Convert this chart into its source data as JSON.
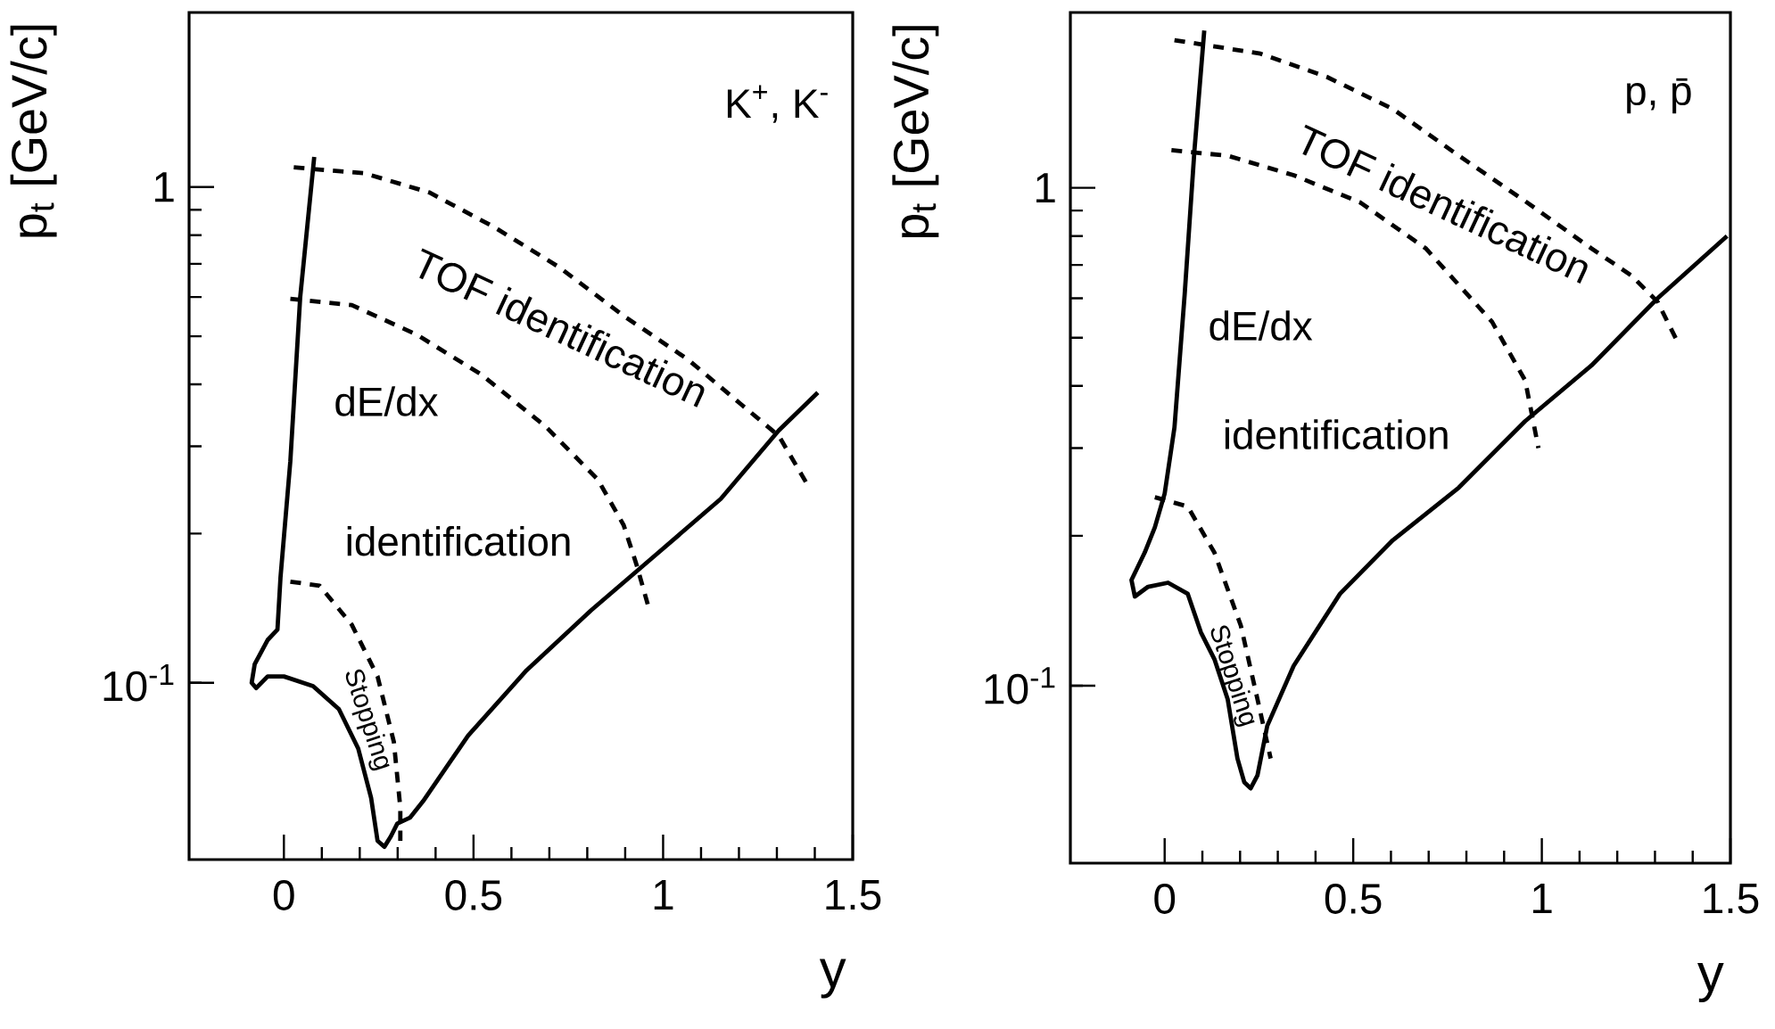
{
  "chart_data": [
    {
      "type": "line",
      "xlabel": "y",
      "ylabel": "p$_{t}$ [GeV/c]",
      "log": "y",
      "xlim": [
        -0.25,
        1.5
      ],
      "ylim": [
        0.044,
        2.25
      ],
      "xticks": [
        0,
        0.5,
        1,
        1.5
      ],
      "yticks": [
        {
          "value": 0.1,
          "label": "10$^{-1}$"
        },
        1
      ],
      "series": [
        {
          "color": "#000000",
          "line_style": "solid",
          "x": [
            0.08,
            0.043,
            0.017,
            -0.009,
            -0.017,
            -0.043,
            -0.077,
            -0.085,
            -0.073,
            -0.043,
            0,
            0.077,
            0.145,
            0.196,
            0.23,
            0.247,
            0.265,
            0.282,
            0.299,
            0.333,
            0.367,
            0.486,
            0.64,
            0.81,
            0.98,
            1.152,
            1.305,
            1.408
          ],
          "values": [
            1.15,
            0.6,
            0.28,
            0.163,
            0.128,
            0.122,
            0.109,
            0.1,
            0.0976,
            0.103,
            0.103,
            0.0985,
            0.0885,
            0.0737,
            0.0586,
            0.048,
            0.0467,
            0.049,
            0.052,
            0.0535,
            0.0577,
            0.0783,
            0.106,
            0.14,
            0.181,
            0.235,
            0.323,
            0.385
          ]
        },
        {
          "color": "#000000",
          "line_style": "dashed",
          "x": [
            0.026,
            0.213,
            0.384,
            0.555,
            0.725,
            0.896,
            1.067,
            1.203,
            1.305,
            1.382
          ],
          "values": [
            1.096,
            1.066,
            0.975,
            0.83,
            0.69,
            0.55,
            0.448,
            0.366,
            0.315,
            0.25
          ]
        },
        {
          "color": "#000000",
          "line_style": "dashed",
          "x": [
            0.017,
            0.179,
            0.35,
            0.52,
            0.69,
            0.828,
            0.896,
            0.93,
            0.964
          ],
          "values": [
            0.595,
            0.578,
            0.504,
            0.419,
            0.329,
            0.257,
            0.208,
            0.173,
            0.14
          ]
        },
        {
          "color": "#000000",
          "line_style": "dashed",
          "x": [
            0.017,
            0.094,
            0.179,
            0.247,
            0.29,
            0.307,
            0.307
          ],
          "values": [
            0.16,
            0.157,
            0.131,
            0.103,
            0.076,
            0.056,
            0.048
          ]
        }
      ],
      "annotations": [
        "K$^{+}$, K$^{-}$",
        "TOF identification",
        "dE/dx",
        "identification",
        "Stopping"
      ]
    },
    {
      "type": "line",
      "xlabel": "y",
      "ylabel": "p$_{t}$ [GeV/c]",
      "log": "y",
      "xlim": [
        -0.25,
        1.5
      ],
      "ylim": [
        0.044,
        2.25
      ],
      "xticks": [
        0,
        0.5,
        1,
        1.5
      ],
      "yticks": [
        {
          "value": 0.1,
          "label": "10$^{-1}$"
        },
        1
      ],
      "series": [
        {
          "color": "#000000",
          "line_style": "solid",
          "x": [
            0.105,
            0.079,
            0.053,
            0.026,
            0,
            -0.026,
            -0.053,
            -0.088,
            -0.079,
            -0.044,
            0.009,
            0.061,
            0.096,
            0.132,
            0.167,
            0.193,
            0.211,
            0.228,
            0.246,
            0.272,
            0.342,
            0.465,
            0.605,
            0.78,
            0.956,
            1.132,
            1.307,
            1.491
          ],
          "values": [
            2.07,
            1.19,
            0.61,
            0.33,
            0.243,
            0.208,
            0.185,
            0.163,
            0.151,
            0.158,
            0.161,
            0.153,
            0.128,
            0.113,
            0.094,
            0.0714,
            0.064,
            0.0622,
            0.066,
            0.083,
            0.1096,
            0.153,
            0.196,
            0.25,
            0.34,
            0.44,
            0.6,
            0.8
          ]
        },
        {
          "color": "#000000",
          "line_style": "dashed",
          "x": [
            0.026,
            0.254,
            0.43,
            0.605,
            0.78,
            0.956,
            1.132,
            1.237,
            1.307,
            1.36
          ],
          "values": [
            1.98,
            1.86,
            1.67,
            1.44,
            1.16,
            0.94,
            0.755,
            0.667,
            0.59,
            0.49
          ]
        },
        {
          "color": "#000000",
          "line_style": "dashed",
          "x": [
            0.018,
            0.167,
            0.342,
            0.518,
            0.693,
            0.868,
            0.956,
            0.991
          ],
          "values": [
            1.19,
            1.16,
            1.06,
            0.935,
            0.755,
            0.538,
            0.41,
            0.3
          ]
        },
        {
          "color": "#000000",
          "line_style": "dashed",
          "x": [
            -0.026,
            0.061,
            0.132,
            0.202,
            0.246,
            0.281
          ],
          "values": [
            0.239,
            0.229,
            0.185,
            0.132,
            0.094,
            0.0714
          ]
        }
      ],
      "annotations": [
        "p, p̄",
        "TOF identification",
        "dE/dx",
        "identification",
        "Stopping"
      ]
    }
  ]
}
